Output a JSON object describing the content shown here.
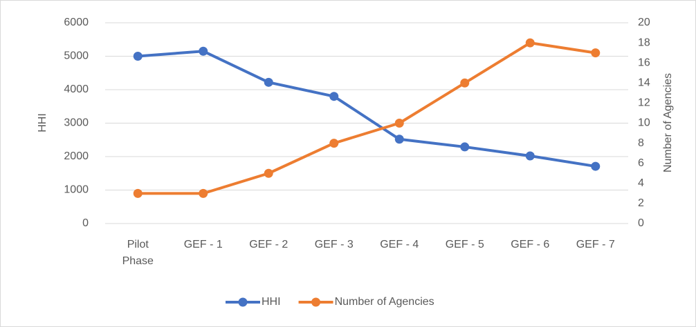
{
  "chart_data": {
    "type": "line",
    "categories": [
      "Pilot Phase",
      "GEF - 1",
      "GEF - 2",
      "GEF - 3",
      "GEF - 4",
      "GEF - 5",
      "GEF - 6",
      "GEF - 7"
    ],
    "series": [
      {
        "name": "HHI",
        "color": "#4472c4",
        "values": [
          5000,
          5150,
          4220,
          3800,
          2520,
          2290,
          2020,
          1710
        ]
      },
      {
        "name": "Number of Agencies",
        "color": "#ed7d31",
        "axis": "y2",
        "values": [
          3,
          3,
          5,
          8,
          10,
          14,
          18,
          17
        ]
      }
    ],
    "ylabel": "HHI",
    "y2label": "Number of Agencies",
    "ylim": [
      0,
      6000
    ],
    "yticks": [
      0,
      1000,
      2000,
      3000,
      4000,
      5000,
      6000
    ],
    "y2lim": [
      0,
      20
    ],
    "y2ticks": [
      0,
      2,
      4,
      6,
      8,
      10,
      12,
      14,
      16,
      18,
      20
    ],
    "grid": true,
    "legend": "bottom"
  }
}
